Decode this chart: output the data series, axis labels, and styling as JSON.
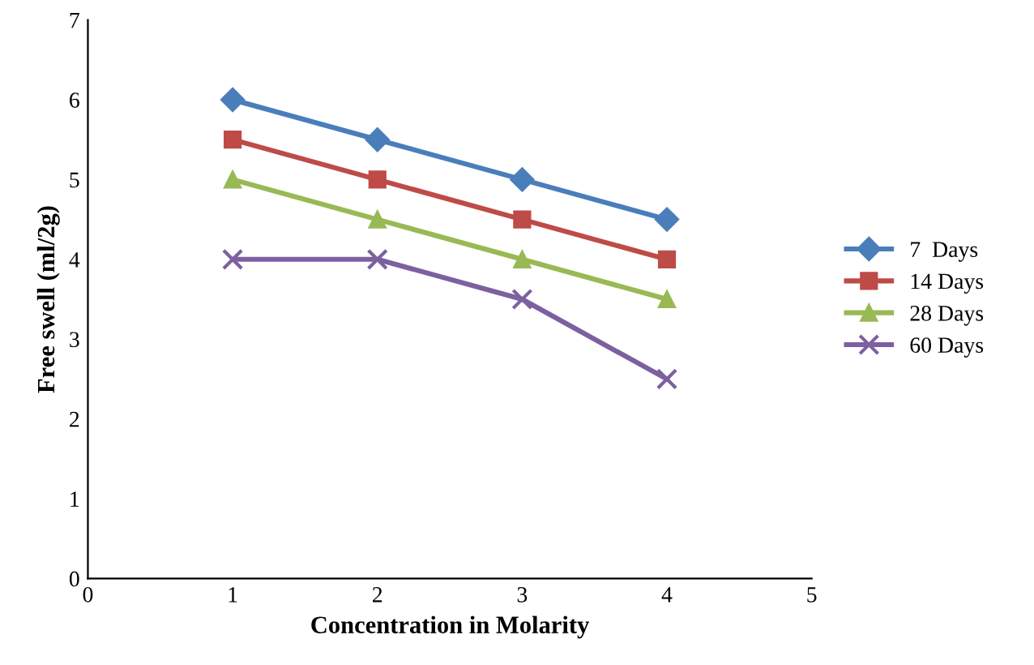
{
  "chart_data": {
    "type": "line",
    "xlabel": "Concentration in Molarity",
    "ylabel": "Free swell (ml/2g)",
    "x": [
      1,
      2,
      3,
      4
    ],
    "xlim": [
      0,
      5
    ],
    "xticks": [
      0,
      1,
      2,
      3,
      4,
      5
    ],
    "ylim": [
      0,
      7
    ],
    "yticks": [
      0,
      1,
      2,
      3,
      4,
      5,
      6,
      7
    ],
    "grid": false,
    "legend": "right",
    "line_style": "solid",
    "series": [
      {
        "name": "7  Days",
        "color": "#4a7ebb",
        "marker": "diamond",
        "values": [
          6,
          5.5,
          5,
          4.5
        ]
      },
      {
        "name": "14 Days",
        "color": "#be4b48",
        "marker": "square",
        "values": [
          5.5,
          5,
          4.5,
          4
        ]
      },
      {
        "name": "28 Days",
        "color": "#98b954",
        "marker": "triangle",
        "values": [
          5,
          4.5,
          4,
          3.5
        ]
      },
      {
        "name": "60 Days",
        "color": "#7d60a0",
        "marker": "cross",
        "values": [
          4,
          4,
          3.5,
          2.5
        ]
      }
    ]
  }
}
